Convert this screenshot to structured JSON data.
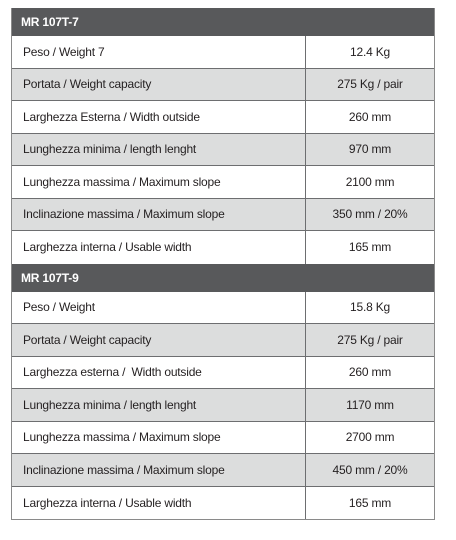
{
  "sections": [
    {
      "title": "MR 107T-7",
      "rows": [
        [
          "Peso / Weight 7",
          "12.4 Kg"
        ],
        [
          "Portata / Weight capacity",
          "275 Kg / pair"
        ],
        [
          "Larghezza Esterna / Width outside",
          "260 mm"
        ],
        [
          "Lunghezza minima / length lenght",
          "970 mm"
        ],
        [
          "Lunghezza massima / Maximum slope",
          "2100 mm"
        ],
        [
          "Inclinazione massima / Maximum slope",
          "350 mm / 20%"
        ],
        [
          "Larghezza interna / Usable width",
          "165 mm"
        ]
      ]
    },
    {
      "title": "MR 107T-9",
      "rows": [
        [
          "Peso / Weight",
          "15.8 Kg"
        ],
        [
          "Portata / Weight capacity",
          "275 Kg / pair"
        ],
        [
          "Larghezza esterna /  Width outside",
          "260 mm"
        ],
        [
          "Lunghezza minima / length lenght",
          "1170 mm"
        ],
        [
          "Lunghezza massima / Maximum slope",
          "2700 mm"
        ],
        [
          "Inclinazione massima / Maximum slope",
          "450 mm / 20%"
        ],
        [
          "Larghezza interna / Usable width",
          "165 mm"
        ]
      ]
    }
  ]
}
